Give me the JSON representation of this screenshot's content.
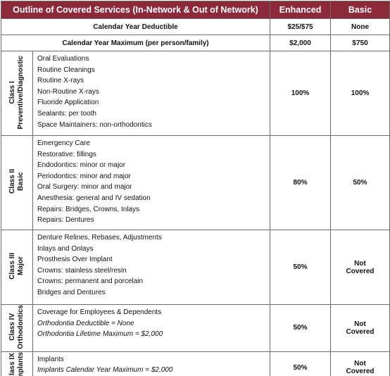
{
  "header": {
    "title": "Outline of Covered Services (In-Network & Out of Network)",
    "columns": [
      "Enhanced",
      "Basic"
    ]
  },
  "summary_rows": [
    {
      "label": "Calendar Year Deductible",
      "enhanced": "$25/$75",
      "basic": "None"
    },
    {
      "label": "Calendar Year Maximum (per person/family)",
      "enhanced": "$2,000",
      "basic": "$750"
    }
  ],
  "classes": [
    {
      "class_name": "Class I",
      "category": "Preventive/Diagnostic",
      "services": [
        "Oral Evaluations",
        "Routine Cleanings",
        "Routine X-rays",
        "Non-Routine X-rays",
        "Fluoride Application",
        "Sealants: per tooth",
        "Space Maintainers: non-orthodontics"
      ],
      "notes": [],
      "enhanced": "100%",
      "basic": "100%"
    },
    {
      "class_name": "Class II",
      "category": "Basic",
      "services": [
        "Emergency Care",
        "Restorative: fillings",
        "Endodontics: minor or major",
        "Periodontics: minor and major",
        "Oral Surgery: minor and major",
        "Anesthesia: general and IV sedation",
        "Repairs: Bridges, Crowns, Inlays",
        "Repairs: Dentures"
      ],
      "notes": [],
      "enhanced": "80%",
      "basic": "50%"
    },
    {
      "class_name": "Class III",
      "category": "Major",
      "services": [
        "Denture Relines, Rebases, Adjustments",
        "Inlays and Onlays",
        "Prosthesis Over Implant",
        "Crowns: stainless steel/resin",
        "Crowns: permanent and porcelain",
        "Bridges and Dentures"
      ],
      "notes": [],
      "enhanced": "50%",
      "basic": "Not Covered"
    },
    {
      "class_name": "Class IV",
      "category": "Orthodontics",
      "services": [
        "Coverage for Employees & Dependents"
      ],
      "notes": [
        "Orthodontia Deductible = None",
        "Orthodontia Lifetime Maximum = $2,000"
      ],
      "enhanced": "50%",
      "basic": "Not Covered"
    },
    {
      "class_name": "Class IX",
      "category": "Implants",
      "services": [
        "Implants"
      ],
      "notes": [
        "Implants Calendar Year Maximum = $2,000"
      ],
      "enhanced": "50%",
      "basic": "Not Covered"
    }
  ]
}
